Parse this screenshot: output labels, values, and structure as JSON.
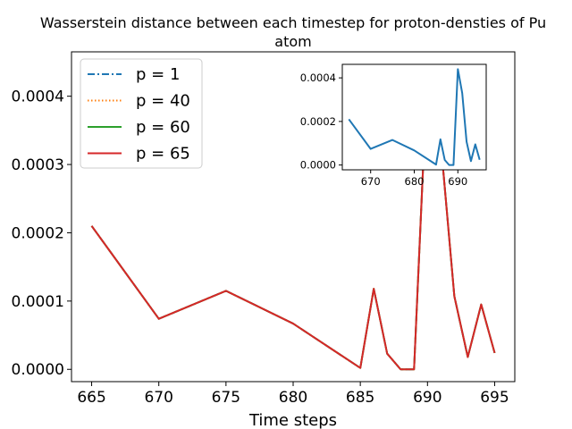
{
  "chart_data": [
    {
      "type": "line",
      "title_line1": "Wasserstein distance between each timestep for proton-densties of Pu",
      "title_line2": "atom",
      "xlabel": "Time steps",
      "ylabel": "",
      "xlim": [
        663.5,
        696.5
      ],
      "ylim": [
        -1.8e-05,
        0.000465
      ],
      "xticks": [
        665,
        670,
        675,
        680,
        685,
        690,
        695
      ],
      "xtick_labels": [
        "665",
        "670",
        "675",
        "680",
        "685",
        "690",
        "695"
      ],
      "yticks": [
        0,
        0.0001,
        0.0002,
        0.0003,
        0.0004
      ],
      "ytick_labels": [
        "0.0000",
        "0.0001",
        "0.0002",
        "0.0003",
        "0.0004"
      ],
      "grid": false,
      "legend_position": "top-left",
      "x": [
        665,
        670,
        675,
        680,
        685,
        686,
        687,
        688,
        689,
        690,
        691,
        692,
        693,
        694,
        695
      ],
      "series": [
        {
          "name": "p = 1",
          "color": "#1f77b4",
          "style": "dashdot",
          "values": [
            0.00021,
            7.4e-05,
            0.000115,
            6.7e-05,
            2e-06,
            0.000118,
            2.3e-05,
            0.0,
            0.0,
            0.00044,
            0.00033,
            0.000107,
            1.8e-05,
            9.5e-05,
            2.4e-05
          ]
        },
        {
          "name": "p = 40",
          "color": "#ff7f0e",
          "style": "dotted",
          "values": [
            0.00021,
            7.4e-05,
            0.000115,
            6.7e-05,
            2e-06,
            0.000118,
            2.3e-05,
            0.0,
            0.0,
            0.00044,
            0.00033,
            0.000107,
            1.8e-05,
            9.5e-05,
            2.4e-05
          ]
        },
        {
          "name": "p = 60",
          "color": "#2ca02c",
          "style": "solid",
          "values": [
            0.00021,
            7.4e-05,
            0.000115,
            6.7e-05,
            2e-06,
            0.000118,
            2.3e-05,
            0.0,
            0.0,
            0.00044,
            0.00033,
            0.000107,
            1.8e-05,
            9.5e-05,
            2.4e-05
          ]
        },
        {
          "name": "p = 65",
          "color": "#d62728",
          "style": "solid",
          "values": [
            0.00021,
            7.4e-05,
            0.000115,
            6.7e-05,
            2e-06,
            0.000118,
            2.3e-05,
            0.0,
            0.0,
            0.00044,
            0.00033,
            0.000107,
            1.8e-05,
            9.5e-05,
            2.4e-05
          ]
        }
      ]
    },
    {
      "type": "line",
      "inset": true,
      "xlim": [
        663.5,
        696.5
      ],
      "ylim": [
        -2.2e-05,
        0.000462
      ],
      "xticks": [
        670,
        680,
        690
      ],
      "xtick_labels": [
        "670",
        "680",
        "690"
      ],
      "yticks": [
        0,
        0.0002,
        0.0004
      ],
      "ytick_labels": [
        "0.0000",
        "0.0002",
        "0.0004"
      ],
      "x": [
        665,
        670,
        675,
        680,
        685,
        686,
        687,
        688,
        689,
        690,
        691,
        692,
        693,
        694,
        695
      ],
      "series": [
        {
          "color": "#1f77b4",
          "style": "solid",
          "values": [
            0.00021,
            7.4e-05,
            0.000115,
            6.7e-05,
            2e-06,
            0.000118,
            2.3e-05,
            0.0,
            0.0,
            0.00044,
            0.00033,
            0.000107,
            1.8e-05,
            9.5e-05,
            2.4e-05
          ]
        }
      ]
    }
  ]
}
